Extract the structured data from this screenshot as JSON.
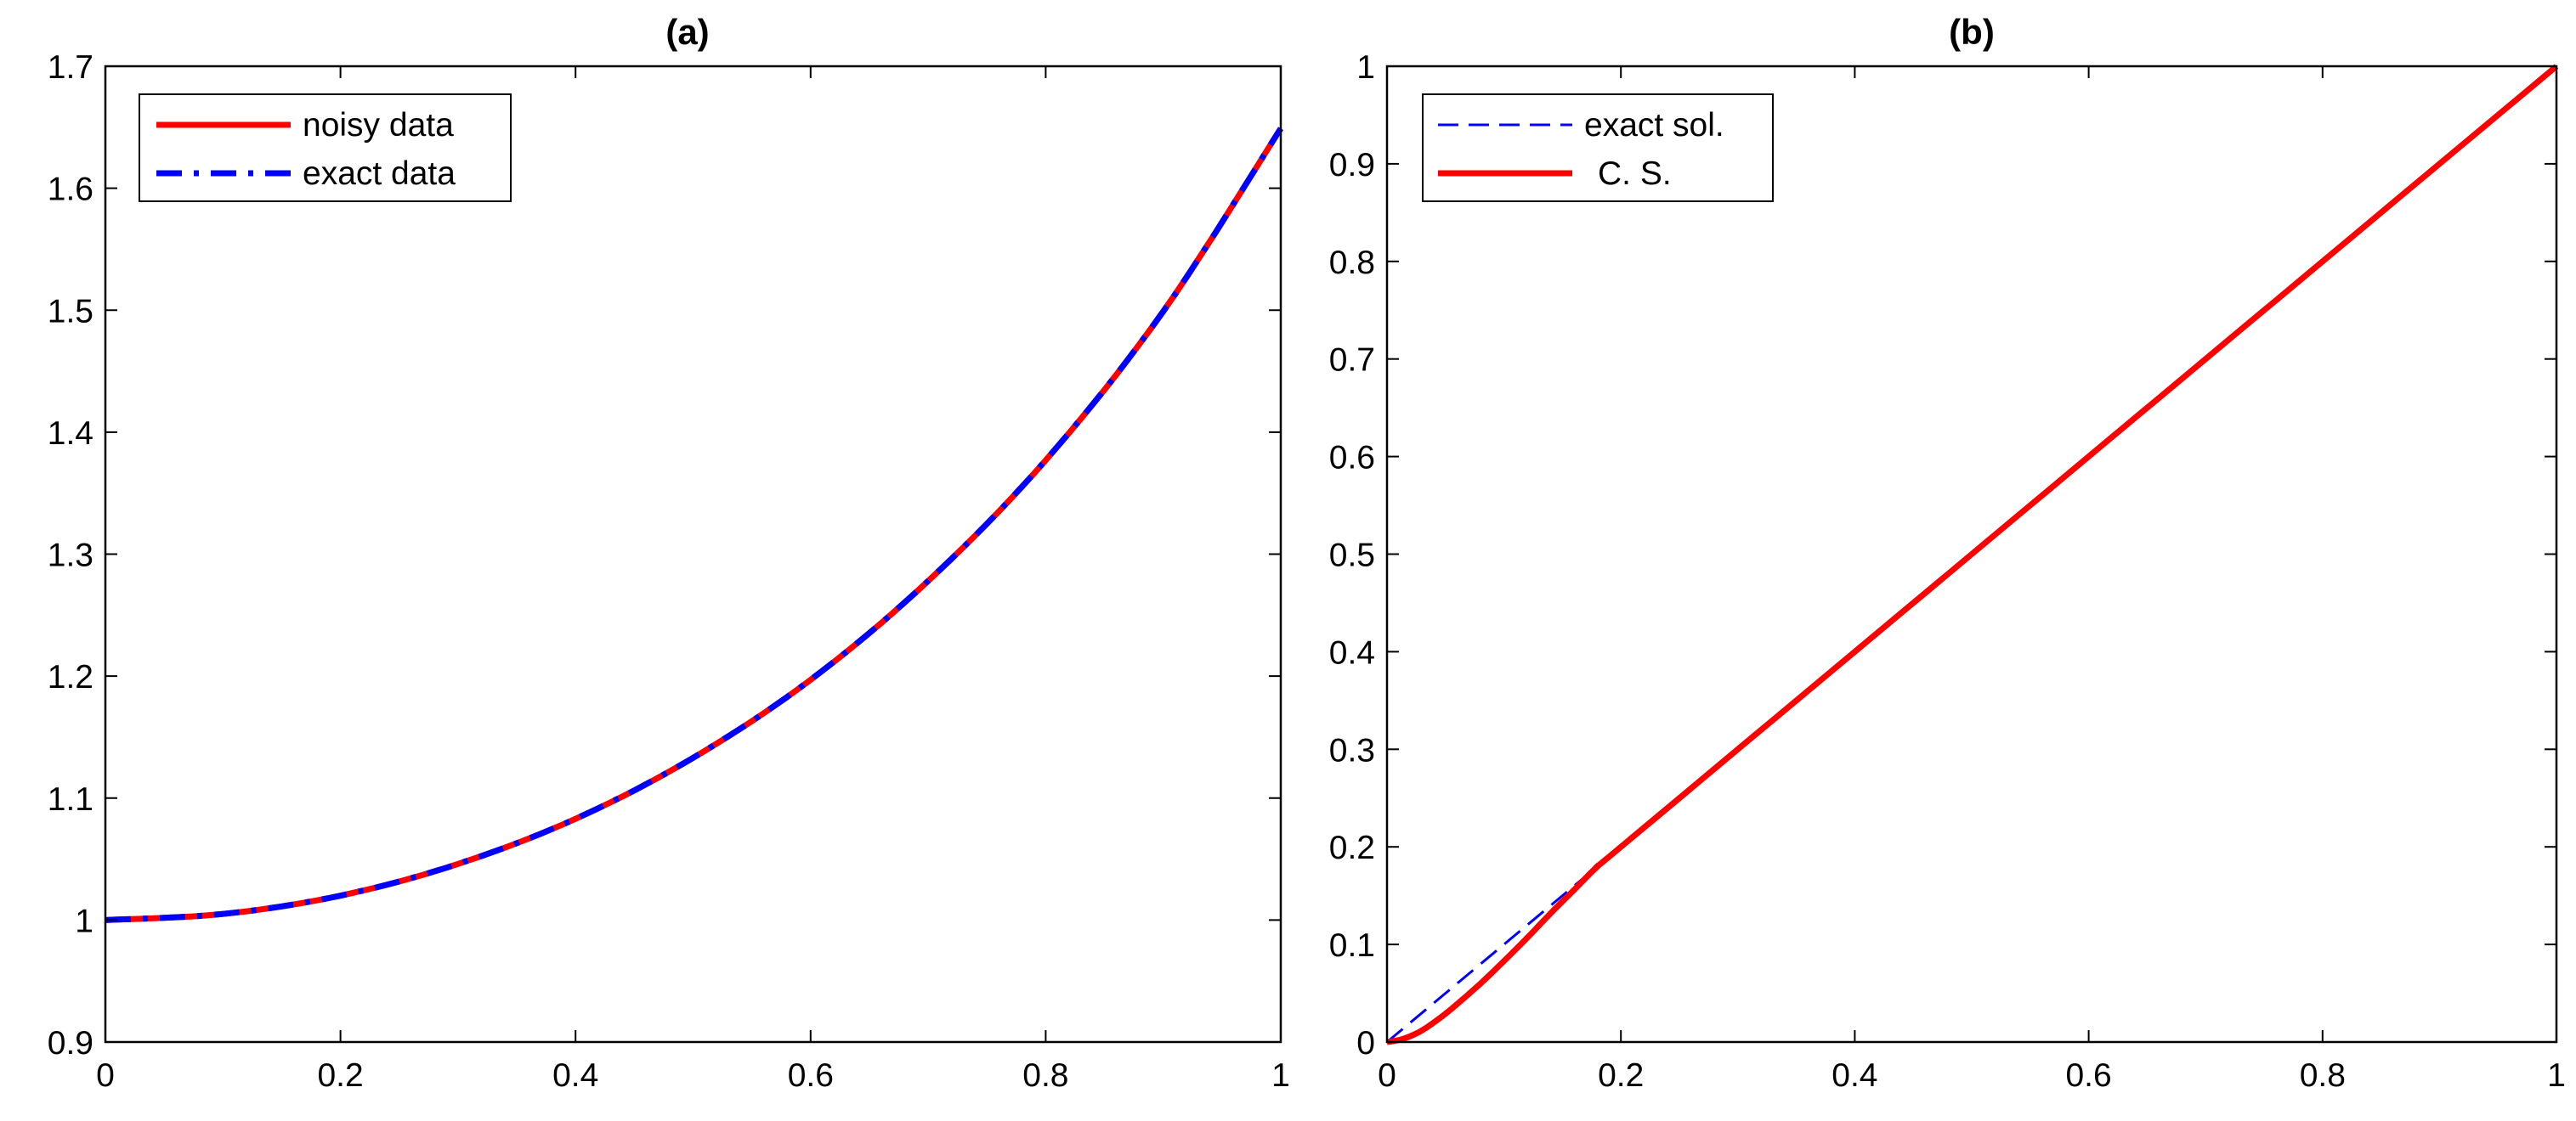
{
  "chart_data": [
    {
      "type": "line",
      "title": "(a)",
      "xlabel": "",
      "ylabel": "",
      "xlim": [
        0,
        1
      ],
      "ylim": [
        0.9,
        1.7
      ],
      "xticks": [
        0,
        0.2,
        0.4,
        0.6,
        0.8,
        1
      ],
      "xtick_labels": [
        "0",
        "0.2",
        "0.4",
        "0.6",
        "0.8",
        "1"
      ],
      "yticks": [
        0.9,
        1.0,
        1.1,
        1.2,
        1.3,
        1.4,
        1.5,
        1.6,
        1.7
      ],
      "ytick_labels": [
        "0.9",
        "1",
        "1.1",
        "1.2",
        "1.3",
        "1.4",
        "1.5",
        "1.6",
        "1.7"
      ],
      "grid": false,
      "legend_position": "top-left",
      "x": [
        0,
        0.1,
        0.2,
        0.3,
        0.4,
        0.5,
        0.6,
        0.7,
        0.8,
        0.9,
        1.0
      ],
      "series": [
        {
          "name": "noisy data",
          "color": "#ff0000",
          "style": "solid",
          "values": [
            1.0,
            1.005,
            1.02,
            1.046,
            1.083,
            1.133,
            1.197,
            1.278,
            1.377,
            1.499,
            1.649
          ]
        },
        {
          "name": "exact data",
          "color": "#0000ff",
          "style": "dashdot",
          "values": [
            1.0,
            1.005,
            1.02,
            1.046,
            1.083,
            1.133,
            1.197,
            1.278,
            1.377,
            1.499,
            1.649
          ]
        }
      ]
    },
    {
      "type": "line",
      "title": "(b)",
      "xlabel": "",
      "ylabel": "",
      "xlim": [
        0,
        1
      ],
      "ylim": [
        0,
        1
      ],
      "xticks": [
        0,
        0.2,
        0.4,
        0.6,
        0.8,
        1
      ],
      "xtick_labels": [
        "0",
        "0.2",
        "0.4",
        "0.6",
        "0.8",
        "1"
      ],
      "yticks": [
        0,
        0.1,
        0.2,
        0.3,
        0.4,
        0.5,
        0.6,
        0.7,
        0.8,
        0.9,
        1
      ],
      "ytick_labels": [
        "0",
        "0.1",
        "0.2",
        "0.3",
        "0.4",
        "0.5",
        "0.6",
        "0.7",
        "0.8",
        "0.9",
        "1"
      ],
      "grid": false,
      "legend_position": "top-left",
      "series": [
        {
          "name": "exact sol.",
          "color": "#0000ff",
          "style": "dashed",
          "x": [
            0,
            1
          ],
          "values": [
            0,
            1
          ]
        },
        {
          "name": "C. S.",
          "color": "#ff0000",
          "style": "solid",
          "x": [
            0,
            0.01,
            0.02,
            0.03,
            0.04,
            0.05,
            0.06,
            0.08,
            0.1,
            0.12,
            0.14,
            0.16,
            0.18,
            0.2,
            0.4,
            0.6,
            0.8,
            1.0
          ],
          "values": [
            0,
            0.002,
            0.006,
            0.012,
            0.02,
            0.029,
            0.039,
            0.06,
            0.083,
            0.107,
            0.132,
            0.156,
            0.18,
            0.2,
            0.4,
            0.6,
            0.8,
            1.0
          ]
        }
      ]
    }
  ]
}
